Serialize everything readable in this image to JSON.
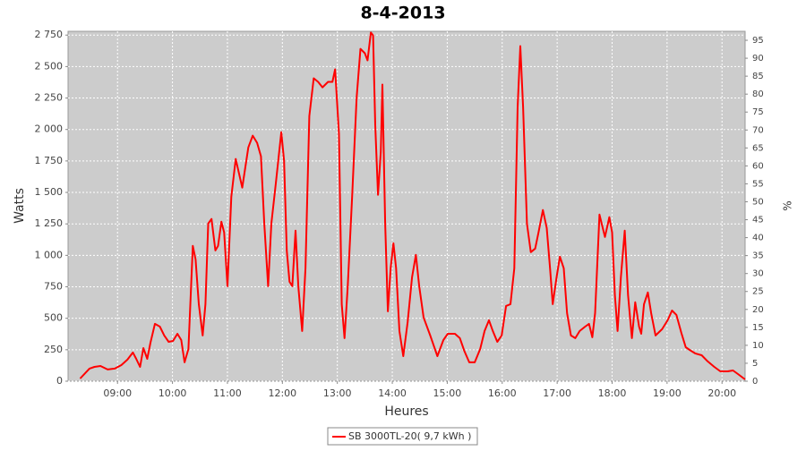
{
  "chart_data": {
    "type": "line",
    "title": "8-4-2013",
    "x_label": "Heures",
    "y_label": "Watts",
    "y2_label": "%",
    "x": [
      8.32,
      8.49,
      8.58,
      8.69,
      8.82,
      8.95,
      9.07,
      9.18,
      9.28,
      9.34,
      9.41,
      9.47,
      9.54,
      9.6,
      9.68,
      9.77,
      9.85,
      9.93,
      10.01,
      10.09,
      10.16,
      10.22,
      10.29,
      10.37,
      10.42,
      10.48,
      10.55,
      10.6,
      10.65,
      10.71,
      10.78,
      10.83,
      10.89,
      10.94,
      11.0,
      11.07,
      11.15,
      11.27,
      11.38,
      11.46,
      11.54,
      11.61,
      11.67,
      11.74,
      11.8,
      11.88,
      11.98,
      12.03,
      12.08,
      12.13,
      12.18,
      12.24,
      12.29,
      12.36,
      12.42,
      12.49,
      12.57,
      12.65,
      12.73,
      12.83,
      12.91,
      12.96,
      13.03,
      13.08,
      13.13,
      13.19,
      13.27,
      13.35,
      13.42,
      13.5,
      13.55,
      13.61,
      13.65,
      13.69,
      13.74,
      13.79,
      13.82,
      13.87,
      13.92,
      13.97,
      14.02,
      14.07,
      14.13,
      14.2,
      14.28,
      14.36,
      14.43,
      14.49,
      14.57,
      14.69,
      14.82,
      14.93,
      15.01,
      15.14,
      15.23,
      15.31,
      15.4,
      15.5,
      15.6,
      15.68,
      15.76,
      15.83,
      15.91,
      15.99,
      16.07,
      16.15,
      16.22,
      16.28,
      16.33,
      16.38,
      16.45,
      16.52,
      16.6,
      16.66,
      16.74,
      16.81,
      16.87,
      16.92,
      16.99,
      17.05,
      17.12,
      17.18,
      17.25,
      17.33,
      17.41,
      17.51,
      17.58,
      17.64,
      17.69,
      17.77,
      17.87,
      17.95,
      18.0,
      18.05,
      18.1,
      18.16,
      18.23,
      18.29,
      18.36,
      18.42,
      18.49,
      18.53,
      18.58,
      18.65,
      18.71,
      18.79,
      18.91,
      19.01,
      19.09,
      19.17,
      19.26,
      19.34,
      19.41,
      19.51,
      19.63,
      19.74,
      19.86,
      19.97,
      20.1,
      20.2,
      20.29,
      20.42
    ],
    "series": [
      {
        "name": "SB 3000TL-20( 9,7 kWh )",
        "color": "#ff0000",
        "values": [
          21,
          100,
          114,
          121,
          93,
          100,
          128,
          171,
          228,
          178,
          114,
          263,
          178,
          306,
          456,
          434,
          363,
          313,
          320,
          377,
          327,
          150,
          256,
          1075,
          968,
          612,
          363,
          612,
          1253,
          1289,
          1039,
          1075,
          1267,
          1182,
          755,
          1467,
          1766,
          1538,
          1858,
          1951,
          1894,
          1787,
          1253,
          755,
          1253,
          1573,
          1979,
          1751,
          1039,
          790,
          755,
          1196,
          755,
          399,
          897,
          2107,
          2407,
          2378,
          2335,
          2378,
          2378,
          2478,
          1965,
          612,
          342,
          755,
          1467,
          2250,
          2641,
          2606,
          2549,
          2770,
          2748,
          2036,
          1481,
          1823,
          2357,
          1253,
          555,
          897,
          1096,
          897,
          399,
          199,
          470,
          826,
          1004,
          755,
          506,
          363,
          199,
          327,
          377,
          377,
          342,
          242,
          150,
          150,
          256,
          399,
          484,
          399,
          313,
          363,
          598,
          612,
          897,
          2179,
          2663,
          2179,
          1253,
          1025,
          1054,
          1182,
          1360,
          1217,
          897,
          612,
          826,
          990,
          897,
          541,
          363,
          342,
          399,
          434,
          456,
          349,
          541,
          1324,
          1146,
          1303,
          1182,
          684,
          399,
          826,
          1196,
          684,
          342,
          627,
          434,
          377,
          612,
          705,
          541,
          363,
          413,
          484,
          562,
          527,
          384,
          270,
          249,
          221,
          206,
          157,
          114,
          78,
          78,
          85,
          57,
          14
        ]
      }
    ],
    "xlim": [
      8.1,
      20.42
    ],
    "xticks": [
      {
        "value": 9,
        "label": "09:00"
      },
      {
        "value": 10,
        "label": "10:00"
      },
      {
        "value": 11,
        "label": "11:00"
      },
      {
        "value": 12,
        "label": "12:00"
      },
      {
        "value": 13,
        "label": "13:00"
      },
      {
        "value": 14,
        "label": "14:00"
      },
      {
        "value": 15,
        "label": "15:00"
      },
      {
        "value": 16,
        "label": "16:00"
      },
      {
        "value": 17,
        "label": "17:00"
      },
      {
        "value": 18,
        "label": "18:00"
      },
      {
        "value": 19,
        "label": "19:00"
      },
      {
        "value": 20,
        "label": "20:00"
      }
    ],
    "ylim": [
      0,
      2780
    ],
    "yticks": [
      0,
      {
        "value": 250,
        "label": "250"
      },
      {
        "value": 500,
        "label": "500"
      },
      {
        "value": 750,
        "label": "750"
      },
      {
        "value": 1000,
        "label": "1 000"
      },
      {
        "value": 1250,
        "label": "1 250"
      },
      {
        "value": 1500,
        "label": "1 500"
      },
      {
        "value": 1750,
        "label": "1 750"
      },
      {
        "value": 2000,
        "label": "2 000"
      },
      {
        "value": 2250,
        "label": "2 250"
      },
      {
        "value": 2500,
        "label": "2 500"
      },
      {
        "value": 2750,
        "label": "2 750"
      }
    ],
    "y2lim": [
      0,
      97.5
    ],
    "y2ticks": [
      0,
      5,
      10,
      15,
      20,
      25,
      30,
      35,
      40,
      45,
      50,
      55,
      60,
      65,
      70,
      75,
      80,
      85,
      90,
      95
    ],
    "grid": true
  }
}
